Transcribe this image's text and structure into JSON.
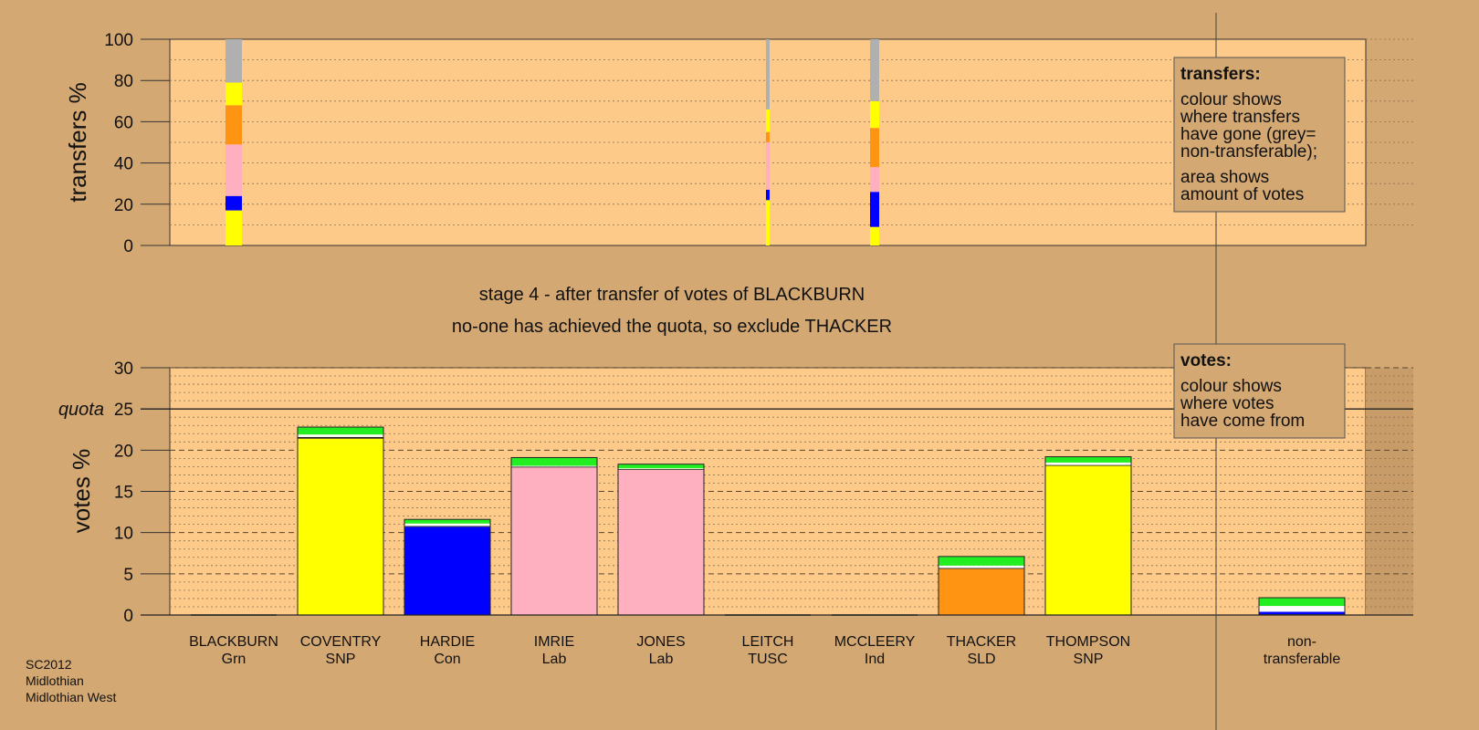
{
  "colors": {
    "background": "#d4a872",
    "plot_area": "#fdca8a",
    "SNP": "#ffff00",
    "Con": "#0000ff",
    "Lab": "#ffb0c0",
    "SLD": "#ff9412",
    "Grn": "#22ee22",
    "nontransferable": "#b0b0b0",
    "white": "#ffffff",
    "black": "#222222"
  },
  "footer": [
    "SC2012",
    "Midlothian",
    "Midlothian West"
  ],
  "stage_title": "stage 4 - after transfer of votes of BLACKBURN",
  "stage_subtitle": "no-one has achieved the quota, so exclude THACKER",
  "legend_transfers": {
    "title": "transfers:",
    "lines1": [
      "colour shows",
      "where transfers",
      "have gone (grey=",
      "non-transferable);"
    ],
    "lines2": [
      "area shows",
      "amount of votes"
    ]
  },
  "legend_votes": {
    "title": "votes:",
    "lines": [
      "colour shows",
      "where votes",
      "have come from"
    ]
  },
  "chart_data": [
    {
      "type": "bar",
      "ylabel": "transfers %",
      "ylim": [
        0,
        100
      ],
      "yticks": [
        0,
        20,
        40,
        60,
        80,
        100
      ],
      "bars": [
        {
          "candidate": "BLACKBURN",
          "width": "wide",
          "segments": [
            {
              "party": "SNP",
              "value": 17
            },
            {
              "party": "Con",
              "value": 7
            },
            {
              "party": "Lab",
              "value": 25
            },
            {
              "party": "SLD",
              "value": 19
            },
            {
              "party": "SNP",
              "value": 11
            },
            {
              "party": "nontransferable",
              "value": 21
            }
          ]
        },
        {
          "candidate": "LEITCH",
          "width": "thin",
          "segments": [
            {
              "party": "SNP",
              "value": 22
            },
            {
              "party": "Con",
              "value": 5
            },
            {
              "party": "Lab",
              "value": 23
            },
            {
              "party": "SLD",
              "value": 5
            },
            {
              "party": "SNP",
              "value": 11
            },
            {
              "party": "nontransferable",
              "value": 34
            }
          ]
        },
        {
          "candidate": "MCCLEERY",
          "width": "medium",
          "segments": [
            {
              "party": "SNP",
              "value": 9
            },
            {
              "party": "Con",
              "value": 17
            },
            {
              "party": "Lab",
              "value": 12
            },
            {
              "party": "SLD",
              "value": 19
            },
            {
              "party": "SNP",
              "value": 13
            },
            {
              "party": "nontransferable",
              "value": 30
            }
          ]
        }
      ]
    },
    {
      "type": "bar",
      "ylabel": "votes %",
      "ylim": [
        0,
        30
      ],
      "yticks": [
        0,
        5,
        10,
        15,
        20,
        25,
        30
      ],
      "quota": 25,
      "quota_label": "quota",
      "categories": [
        {
          "name": "BLACKBURN",
          "party": "Grn"
        },
        {
          "name": "COVENTRY",
          "party": "SNP"
        },
        {
          "name": "HARDIE",
          "party": "Con"
        },
        {
          "name": "IMRIE",
          "party": "Lab"
        },
        {
          "name": "JONES",
          "party": "Lab"
        },
        {
          "name": "LEITCH",
          "party": "TUSC"
        },
        {
          "name": "MCCLEERY",
          "party": "Ind"
        },
        {
          "name": "THACKER",
          "party": "SLD"
        },
        {
          "name": "THOMPSON",
          "party": "SNP"
        },
        {
          "name": "non-",
          "party": "transferable"
        }
      ],
      "stacks": [
        [],
        [
          {
            "c": "SNP",
            "v": 21.4
          },
          {
            "c": "black",
            "v": 0.2
          },
          {
            "c": "white",
            "v": 0.3
          },
          {
            "c": "Grn",
            "v": 0.9
          }
        ],
        [
          {
            "c": "Con",
            "v": 10.7
          },
          {
            "c": "black",
            "v": 0.1
          },
          {
            "c": "white",
            "v": 0.3
          },
          {
            "c": "Grn",
            "v": 0.5
          }
        ],
        [
          {
            "c": "Lab",
            "v": 17.9
          },
          {
            "c": "black",
            "v": 0.1
          },
          {
            "c": "white",
            "v": 0.1
          },
          {
            "c": "Grn",
            "v": 1.0
          }
        ],
        [
          {
            "c": "Lab",
            "v": 17.6
          },
          {
            "c": "black",
            "v": 0.1
          },
          {
            "c": "white",
            "v": 0.1
          },
          {
            "c": "Grn",
            "v": 0.5
          }
        ],
        [],
        [],
        [
          {
            "c": "SLD",
            "v": 5.6
          },
          {
            "c": "black",
            "v": 0.1
          },
          {
            "c": "white",
            "v": 0.3
          },
          {
            "c": "Grn",
            "v": 1.1
          }
        ],
        [
          {
            "c": "SNP",
            "v": 18.1
          },
          {
            "c": "black",
            "v": 0.1
          },
          {
            "c": "white",
            "v": 0.3
          },
          {
            "c": "Grn",
            "v": 0.7
          }
        ],
        [
          {
            "c": "black",
            "v": 0.1
          },
          {
            "c": "Con",
            "v": 0.3
          },
          {
            "c": "white",
            "v": 0.7
          },
          {
            "c": "Grn",
            "v": 1.0
          }
        ]
      ]
    }
  ]
}
